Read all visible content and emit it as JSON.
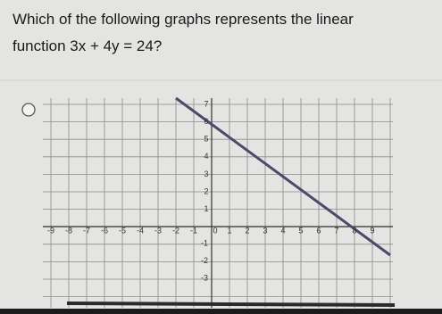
{
  "question": {
    "line1": "Which of the following graphs represents the linear",
    "line2": "function 3x + 4y = 24?"
  },
  "graph": {
    "x_labels": [
      "-9",
      "-8",
      "-7",
      "-6",
      "-5",
      "-4",
      "-3",
      "-2",
      "-1",
      "0",
      "1",
      "2",
      "3",
      "4",
      "5",
      "6",
      "7",
      "8",
      "9"
    ],
    "y_labels": [
      "7",
      "6",
      "5",
      "4",
      "3",
      "2",
      "1"
    ],
    "y_neg_labels": [
      "-1",
      "-2",
      "-3"
    ]
  }
}
